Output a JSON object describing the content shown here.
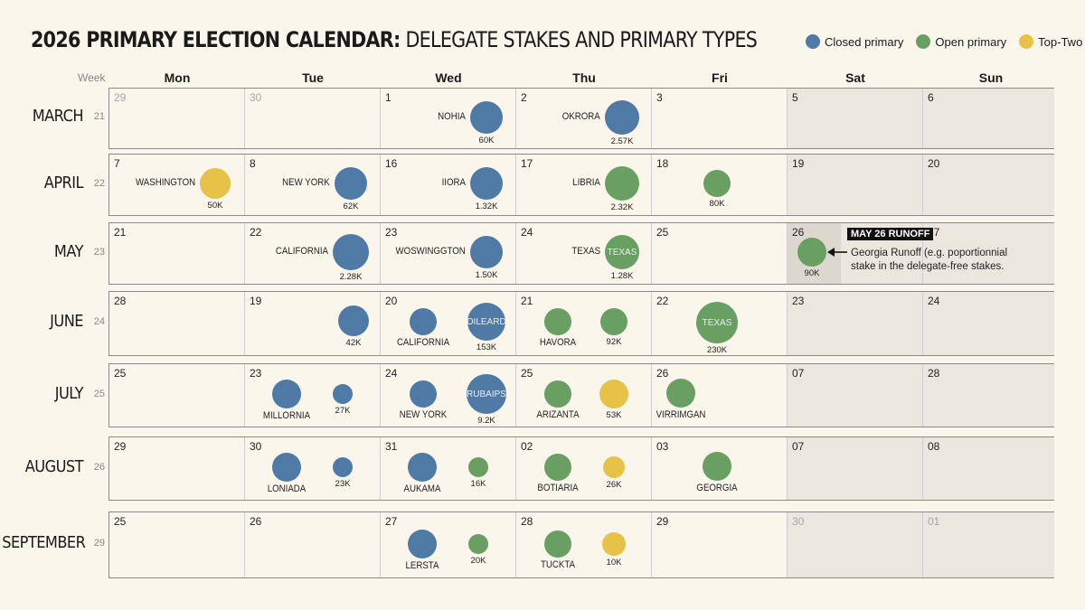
{
  "title": {
    "bold": "2026 PRIMARY ELECTION CALENDAR:",
    "rest": " DELEGATE STAKES AND PRIMARY TYPES"
  },
  "legend": [
    {
      "label": "Closed primary",
      "color": "#4f7aa6"
    },
    {
      "label": "Open primary",
      "color": "#6a9f63"
    },
    {
      "label": "Top-Two",
      "color": "#e7c248"
    }
  ],
  "week_header": "Week",
  "days": [
    "Mon",
    "Tue",
    "Wed",
    "Thu",
    "Fri",
    "Sat",
    "Sun"
  ],
  "annotation": {
    "label": "MAY 26 RUNOFF",
    "text": "Georgia Runoff (e.g. poportionnial stake in the delegate-free stakes."
  },
  "chart_data": {
    "type": "calendar-bubble",
    "title": "2026 PRIMARY ELECTION CALENDAR: DELEGATE STAKES AND PRIMARY TYPES",
    "legend_position": "top-right",
    "rows": [
      {
        "month": "MARCH",
        "week": "21",
        "days": [
          {
            "date": "29",
            "muted": true
          },
          {
            "date": "30",
            "muted": true
          },
          {
            "date": "1",
            "events": [
              {
                "type": "closed",
                "label": "NOHIA",
                "label_pos": "left",
                "value": "60K",
                "size": 36
              }
            ]
          },
          {
            "date": "2",
            "events": [
              {
                "type": "closed",
                "label": "OKRORA",
                "label_pos": "left",
                "value": "2.57K",
                "size": 38
              }
            ]
          },
          {
            "date": "3"
          },
          {
            "date": "5"
          },
          {
            "date": "6"
          }
        ]
      },
      {
        "month": "APRIL",
        "week": "22",
        "days": [
          {
            "date": "7",
            "events": [
              {
                "type": "toptwo",
                "label": "WASHINGTON",
                "label_pos": "left",
                "value": "50K",
                "size": 34
              }
            ]
          },
          {
            "date": "8",
            "events": [
              {
                "type": "closed",
                "label": "NEW YORK",
                "label_pos": "left",
                "value": "62K",
                "size": 36
              }
            ]
          },
          {
            "date": "16",
            "events": [
              {
                "type": "closed",
                "label": "IIORA",
                "label_pos": "left",
                "value": "1.32K",
                "size": 36
              }
            ]
          },
          {
            "date": "17",
            "events": [
              {
                "type": "open",
                "label": "LIBRIA",
                "label_pos": "left",
                "value": "2.32K",
                "size": 38
              }
            ]
          },
          {
            "date": "18",
            "events": [
              {
                "type": "open",
                "label": "",
                "value": "80K",
                "size": 30
              }
            ]
          },
          {
            "date": "19"
          },
          {
            "date": "20"
          }
        ]
      },
      {
        "month": "MAY",
        "week": "23",
        "days": [
          {
            "date": "21"
          },
          {
            "date": "22",
            "events": [
              {
                "type": "closed",
                "label": "CALIFORNIA",
                "label_pos": "left",
                "value": "2.28K",
                "size": 40
              }
            ]
          },
          {
            "date": "23",
            "events": [
              {
                "type": "closed",
                "label": "WOSWINGGTON",
                "label_pos": "left",
                "value": "1.50K",
                "size": 36
              }
            ]
          },
          {
            "date": "24",
            "events": [
              {
                "type": "open",
                "label": "TEXAS",
                "label_pos": "left",
                "inner": "TEXAS",
                "value": "1.28K",
                "size": 38
              }
            ]
          },
          {
            "date": "25"
          },
          {
            "date": "26",
            "events": [
              {
                "type": "open",
                "label": "",
                "value": "90K",
                "size": 32
              }
            ]
          },
          {
            "date": "27"
          }
        ]
      },
      {
        "month": "JUNE",
        "week": "24",
        "days": [
          {
            "date": "28"
          },
          {
            "date": "19",
            "events": [
              {
                "type": "closed",
                "label": "",
                "value": "42K",
                "size": 34
              }
            ]
          },
          {
            "date": "20",
            "events": [
              {
                "type": "closed",
                "label": "CALIFORNIA",
                "label_pos": "below",
                "value": "",
                "size": 30
              },
              {
                "type": "closed",
                "label": "",
                "inner": "DILEARD",
                "value": "153K",
                "size": 42
              }
            ]
          },
          {
            "date": "21",
            "events": [
              {
                "type": "open",
                "label": "HAVORA",
                "label_pos": "below",
                "value": "",
                "size": 30
              },
              {
                "type": "open",
                "label": "",
                "value": "92K",
                "size": 30
              }
            ]
          },
          {
            "date": "22",
            "events": [
              {
                "type": "open",
                "label": "",
                "inner": "TEXAS",
                "value": "230K",
                "size": 46
              }
            ]
          },
          {
            "date": "23"
          },
          {
            "date": "24"
          }
        ]
      },
      {
        "month": "JULY",
        "week": "25",
        "days": [
          {
            "date": "25"
          },
          {
            "date": "23",
            "events": [
              {
                "type": "closed",
                "label": "MILLORNIA",
                "label_pos": "below",
                "value": "",
                "size": 32
              },
              {
                "type": "closed",
                "label": "",
                "value": "27K",
                "size": 22
              }
            ]
          },
          {
            "date": "24",
            "events": [
              {
                "type": "closed",
                "label": "NEW YORK",
                "label_pos": "below",
                "value": "",
                "size": 30
              },
              {
                "type": "closed",
                "label": "",
                "inner": "RUBAIPS",
                "value": "9.2K",
                "size": 44
              }
            ]
          },
          {
            "date": "25",
            "events": [
              {
                "type": "open",
                "label": "ARIZANTA",
                "label_pos": "below",
                "value": "",
                "size": 30
              },
              {
                "type": "toptwo",
                "label": "",
                "value": "53K",
                "size": 32
              }
            ]
          },
          {
            "date": "26",
            "events": [
              {
                "type": "open",
                "label": "VIRRIMGAN",
                "label_pos": "below",
                "value": "",
                "size": 32
              }
            ]
          },
          {
            "date": "07"
          },
          {
            "date": "28"
          }
        ]
      },
      {
        "month": "AUGUST",
        "week": "26",
        "days": [
          {
            "date": "29"
          },
          {
            "date": "30",
            "events": [
              {
                "type": "closed",
                "label": "LONIADA",
                "label_pos": "below",
                "value": "",
                "size": 32
              },
              {
                "type": "closed",
                "label": "",
                "value": "23K",
                "size": 22
              }
            ]
          },
          {
            "date": "31",
            "events": [
              {
                "type": "closed",
                "label": "AUKAMA",
                "label_pos": "below",
                "value": "",
                "size": 32
              },
              {
                "type": "open",
                "label": "",
                "value": "16K",
                "size": 22
              }
            ]
          },
          {
            "date": "02",
            "events": [
              {
                "type": "open",
                "label": "BOTIARIA",
                "label_pos": "below",
                "value": "",
                "size": 30
              },
              {
                "type": "toptwo",
                "label": "",
                "value": "26K",
                "size": 24
              }
            ]
          },
          {
            "date": "03",
            "events": [
              {
                "type": "open",
                "label": "GEORGIA",
                "label_pos": "below",
                "value": "",
                "size": 32
              }
            ]
          },
          {
            "date": "07"
          },
          {
            "date": "08"
          }
        ]
      },
      {
        "month": "SEPTEMBER",
        "week": "29",
        "days": [
          {
            "date": "25"
          },
          {
            "date": "26"
          },
          {
            "date": "27",
            "events": [
              {
                "type": "closed",
                "label": "LERSTA",
                "label_pos": "below",
                "value": "",
                "size": 32
              },
              {
                "type": "open",
                "label": "",
                "value": "20K",
                "size": 22
              }
            ]
          },
          {
            "date": "28",
            "events": [
              {
                "type": "open",
                "label": "TUCKTA",
                "label_pos": "below",
                "value": "",
                "size": 30
              },
              {
                "type": "toptwo",
                "label": "",
                "value": "10K",
                "size": 26
              }
            ]
          },
          {
            "date": "29"
          },
          {
            "date": "30",
            "muted": true
          },
          {
            "date": "01",
            "muted": true
          }
        ]
      }
    ]
  }
}
